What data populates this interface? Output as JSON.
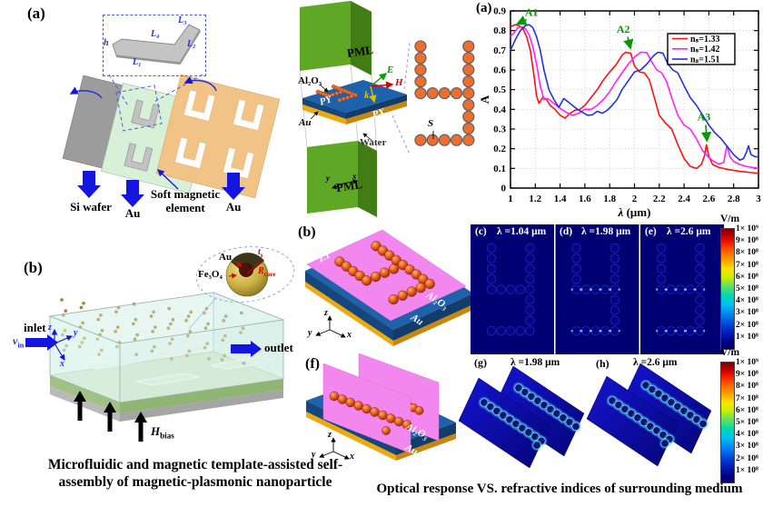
{
  "left_a": {
    "panel_label": "(a)",
    "inset": {
      "h": "h",
      "l1": "L₁",
      "l2": "L₂",
      "l3": "L₃",
      "l4": "L₄"
    },
    "si_wafer": "Si wafer",
    "au_left": "Au",
    "soft_magnetic_line1": "Soft magnetic",
    "soft_magnetic_line2": "element",
    "au_right": "Au"
  },
  "left_b": {
    "panel_label": "(b)",
    "inlet": "inlet",
    "outlet": "outlet",
    "vin": {
      "main": "v",
      "sub": "in"
    },
    "hbias": {
      "main": "H",
      "sub": "bias"
    },
    "axis_x": "x",
    "axis_y": "y",
    "axis_z": "z",
    "particle": {
      "au": "Au",
      "fe3o4": "Fe₃O₄",
      "ts": {
        "main": "t",
        "sub": "s"
      },
      "rcore": {
        "main": "R",
        "sub": "core"
      }
    }
  },
  "caption_left": {
    "line1": "Microfluidic and magnetic template-assisted self-",
    "line2": "assembly of magnetic-plasmonic nanoparticle"
  },
  "sim": {
    "pml_top": "PML",
    "pml_bottom": "PML",
    "al2o3": "Al₂O₃",
    "au": "Au",
    "py": "PY",
    "px": "PX",
    "e": "E",
    "h": "H",
    "k": "k",
    "water": "Water",
    "s": "S",
    "axis_x": "x",
    "axis_y": "y"
  },
  "mid_b": {
    "panel_label": "(b)",
    "z1": "Z1",
    "al2o3": "Al₂O₃",
    "au": "Au",
    "axis_x": "x",
    "axis_y": "y",
    "axis_z": "z"
  },
  "mid_f": {
    "panel_label": "(f)",
    "al2o3": "Al₂O₃",
    "au": "Au",
    "axis_x": "x",
    "axis_y": "y",
    "axis_z": "z"
  },
  "field_maps": {
    "c_label": "(c)",
    "c_lambda": "λ =1.04 μm",
    "d_label": "(d)",
    "d_lambda": "λ =1.98 μm",
    "e_label": "(e)",
    "e_lambda": "λ =2.6 μm",
    "g_label": "(g)",
    "g_lambda": "λ =1.98 μm",
    "h_label": "(h)",
    "h_lambda": "λ =2.6 μm",
    "colorbar_title": "V/m",
    "colorbar_ticks": [
      "1× 10⁹",
      "9× 10⁸",
      "8× 10⁸",
      "7× 10⁸",
      "6× 10⁸",
      "5× 10⁸",
      "4× 10⁸",
      "3× 10⁸",
      "2× 10⁸",
      "1× 10⁸"
    ]
  },
  "caption_right": "Optical response VS. refractive indices of surrounding medium",
  "chart_data": {
    "type": "line",
    "panel_label": "(a)",
    "xlabel": "λ (μm)",
    "ylabel": "A",
    "xlim": [
      1,
      3
    ],
    "ylim": [
      0,
      0.9
    ],
    "xticks": [
      1,
      1.2,
      1.4,
      1.6,
      1.8,
      2,
      2.2,
      2.4,
      2.6,
      2.8,
      3
    ],
    "yticks": [
      0,
      0.1,
      0.2,
      0.3,
      0.4,
      0.5,
      0.6,
      0.7,
      0.8,
      0.9
    ],
    "grid": true,
    "legend_position": "upper-right",
    "series": [
      {
        "name": "nₛ=1.33",
        "color": "#ff1111",
        "x": [
          1.0,
          1.02,
          1.04,
          1.07,
          1.1,
          1.13,
          1.16,
          1.19,
          1.21,
          1.23,
          1.26,
          1.29,
          1.32,
          1.36,
          1.4,
          1.44,
          1.48,
          1.52,
          1.56,
          1.6,
          1.65,
          1.7,
          1.75,
          1.8,
          1.85,
          1.9,
          1.93,
          1.97,
          2.0,
          2.04,
          2.08,
          2.12,
          2.16,
          2.2,
          2.25,
          2.3,
          2.35,
          2.4,
          2.45,
          2.5,
          2.54,
          2.565,
          2.58,
          2.6,
          2.63,
          2.68,
          2.75,
          2.85,
          3.0
        ],
        "y": [
          0.82,
          0.825,
          0.83,
          0.825,
          0.81,
          0.77,
          0.7,
          0.57,
          0.47,
          0.43,
          0.46,
          0.45,
          0.42,
          0.4,
          0.37,
          0.355,
          0.38,
          0.395,
          0.4,
          0.42,
          0.46,
          0.5,
          0.55,
          0.59,
          0.625,
          0.675,
          0.69,
          0.685,
          0.62,
          0.59,
          0.585,
          0.55,
          0.46,
          0.37,
          0.33,
          0.3,
          0.22,
          0.15,
          0.11,
          0.1,
          0.12,
          0.165,
          0.22,
          0.16,
          0.12,
          0.105,
          0.095,
          0.085,
          0.075
        ]
      },
      {
        "name": "nₛ=1.42",
        "color": "#ff22ff",
        "x": [
          1.0,
          1.03,
          1.06,
          1.09,
          1.12,
          1.15,
          1.18,
          1.21,
          1.24,
          1.27,
          1.3,
          1.33,
          1.37,
          1.41,
          1.45,
          1.5,
          1.55,
          1.6,
          1.65,
          1.7,
          1.75,
          1.8,
          1.85,
          1.9,
          1.95,
          2.0,
          2.05,
          2.1,
          2.14,
          2.18,
          2.22,
          2.26,
          2.3,
          2.35,
          2.4,
          2.45,
          2.5,
          2.55,
          2.6,
          2.64,
          2.68,
          2.72,
          2.745,
          2.77,
          2.8,
          2.85,
          2.9,
          3.0
        ],
        "y": [
          0.77,
          0.79,
          0.815,
          0.82,
          0.81,
          0.78,
          0.72,
          0.63,
          0.52,
          0.45,
          0.455,
          0.44,
          0.42,
          0.4,
          0.385,
          0.37,
          0.38,
          0.4,
          0.4,
          0.42,
          0.45,
          0.49,
          0.54,
          0.585,
          0.63,
          0.665,
          0.69,
          0.688,
          0.64,
          0.6,
          0.585,
          0.54,
          0.46,
          0.37,
          0.32,
          0.3,
          0.25,
          0.19,
          0.155,
          0.135,
          0.122,
          0.13,
          0.215,
          0.16,
          0.135,
          0.12,
          0.11,
          0.1
        ]
      },
      {
        "name": "nₛ=1.51",
        "color": "#2233dd",
        "x": [
          1.0,
          1.04,
          1.08,
          1.12,
          1.15,
          1.18,
          1.21,
          1.24,
          1.27,
          1.31,
          1.35,
          1.39,
          1.43,
          1.46,
          1.5,
          1.54,
          1.58,
          1.62,
          1.66,
          1.7,
          1.74,
          1.78,
          1.82,
          1.86,
          1.9,
          1.95,
          2.0,
          2.05,
          2.1,
          2.15,
          2.19,
          2.23,
          2.27,
          2.31,
          2.35,
          2.4,
          2.45,
          2.5,
          2.55,
          2.6,
          2.65,
          2.7,
          2.75,
          2.8,
          2.85,
          2.88,
          2.905,
          2.92,
          2.94,
          2.97,
          3.0
        ],
        "y": [
          0.7,
          0.755,
          0.8,
          0.825,
          0.83,
          0.815,
          0.77,
          0.7,
          0.6,
          0.5,
          0.45,
          0.41,
          0.455,
          0.44,
          0.42,
          0.4,
          0.385,
          0.37,
          0.372,
          0.39,
          0.38,
          0.395,
          0.42,
          0.45,
          0.5,
          0.545,
          0.59,
          0.6,
          0.63,
          0.67,
          0.69,
          0.685,
          0.63,
          0.6,
          0.585,
          0.52,
          0.46,
          0.42,
          0.37,
          0.32,
          0.28,
          0.25,
          0.21,
          0.17,
          0.142,
          0.15,
          0.185,
          0.215,
          0.17,
          0.16,
          0.158
        ]
      }
    ],
    "annotations": [
      {
        "text": "A1",
        "color": "#009a00",
        "text_xy": [
          1.17,
          0.875
        ],
        "arrow_from": [
          1.13,
          0.856
        ],
        "arrow_to": [
          1.055,
          0.834
        ]
      },
      {
        "text": "A2",
        "color": "#009a00",
        "text_xy": [
          1.91,
          0.79
        ],
        "arrow_from": [
          1.945,
          0.768
        ],
        "arrow_to": [
          1.968,
          0.71
        ]
      },
      {
        "text": "A3",
        "color": "#009a00",
        "text_xy": [
          2.56,
          0.345
        ],
        "arrow_from": [
          2.575,
          0.32
        ],
        "arrow_to": [
          2.585,
          0.24
        ]
      }
    ]
  }
}
